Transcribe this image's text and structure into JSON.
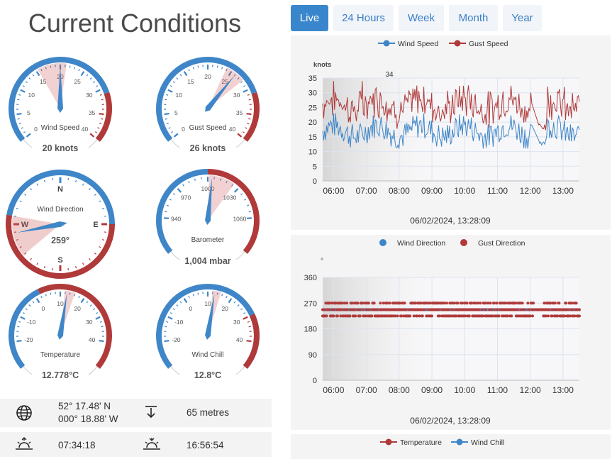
{
  "title": "Current Conditions",
  "gauges": [
    {
      "id": "wind-speed",
      "label": "Wind Speed",
      "value_text": "20 knots",
      "value": 20,
      "min": 0,
      "max": 40,
      "ticks": [
        "0",
        "5",
        "10",
        "15",
        "20",
        "25",
        "30",
        "35",
        "40"
      ],
      "band_from": 32,
      "accent": "#c0392b"
    },
    {
      "id": "gust-speed",
      "label": "Gust Speed",
      "value_text": "26 knots",
      "value": 26,
      "min": 0,
      "max": 40,
      "ticks": [
        "0",
        "5",
        "10",
        "15",
        "20",
        "25",
        "30",
        "35",
        "40"
      ],
      "band_from": 32,
      "accent": "#c0392b"
    },
    {
      "id": "wind-direction",
      "label": "Wind Direction",
      "value_text": "259°",
      "value": 259,
      "compass": [
        "N",
        "E",
        "S",
        "W"
      ]
    },
    {
      "id": "barometer",
      "label": "Barometer",
      "value_text": "1,004 mbar",
      "value": 1004,
      "min": 910,
      "max": 1090,
      "ticks": [
        "940",
        "970",
        "1000",
        "1030",
        "1060"
      ]
    },
    {
      "id": "temperature",
      "label": "Temperature",
      "value_text": "12.778°C",
      "value": 12.778,
      "min": -30,
      "max": 50,
      "ticks": [
        "-20",
        "-10",
        "0",
        "10",
        "20",
        "30",
        "40"
      ]
    },
    {
      "id": "wind-chill",
      "label": "Wind Chill",
      "value_text": "12.8°C",
      "value": 12.8,
      "min": -30,
      "max": 50,
      "ticks": [
        "-20",
        "-10",
        "0",
        "10",
        "20",
        "30",
        "40"
      ]
    }
  ],
  "info": {
    "lat": "52° 17.48' N",
    "lon": "000° 18.88' W",
    "altitude": "65 metres",
    "sunrise": "07:34:18",
    "sunset": "16:56:54"
  },
  "icons": {
    "location": "globe-icon",
    "altitude": "altitude-arrow-icon",
    "sunrise": "sunrise-icon",
    "sunset": "sunset-icon"
  },
  "tabs": [
    "Live",
    "24 Hours",
    "Week",
    "Month",
    "Year"
  ],
  "active_tab": "Live",
  "colors": {
    "blue": "#3f86c8",
    "red": "#b03a3a",
    "active_tab": "#3a86cc"
  },
  "chart_data": [
    {
      "type": "line",
      "series": [
        {
          "name": "Wind Speed",
          "color": "#3f86c8"
        },
        {
          "name": "Gust Speed",
          "color": "#b03a3a"
        }
      ],
      "ylabel": "knots",
      "ylim": [
        0,
        35
      ],
      "yticks": [
        "0",
        "5",
        "10",
        "15",
        "20",
        "25",
        "30",
        "35"
      ],
      "xticks": [
        "06:00",
        "07:00",
        "08:00",
        "09:00",
        "10:00",
        "11:00",
        "12:00",
        "13:00"
      ],
      "x_range": [
        "05:40",
        "13:30"
      ],
      "annotation": "34",
      "timestamp": "06/02/2024, 13:28:09",
      "approx": {
        "wind_mean": 17,
        "wind_range": [
          12,
          25
        ],
        "gust_mean": 25,
        "gust_range": [
          18,
          34
        ]
      }
    },
    {
      "type": "scatter",
      "series": [
        {
          "name": "Wind Direction",
          "color": "#3f86c8"
        },
        {
          "name": "Gust Direction",
          "color": "#b03a3a"
        }
      ],
      "ylabel": "°",
      "ylim": [
        0,
        360
      ],
      "yticks": [
        "0",
        "90",
        "180",
        "270",
        "360"
      ],
      "xticks": [
        "06:00",
        "07:00",
        "08:00",
        "09:00",
        "10:00",
        "11:00",
        "12:00",
        "13:00"
      ],
      "x_range": [
        "05:40",
        "13:30"
      ],
      "timestamp": "06/02/2024, 13:28:09",
      "approx": {
        "levels": [
          225,
          247,
          270
        ],
        "main": 247
      }
    },
    {
      "type": "line",
      "series": [
        {
          "name": "Temperature",
          "color": "#b03a3a"
        },
        {
          "name": "Wind Chill",
          "color": "#3f86c8"
        }
      ]
    }
  ]
}
